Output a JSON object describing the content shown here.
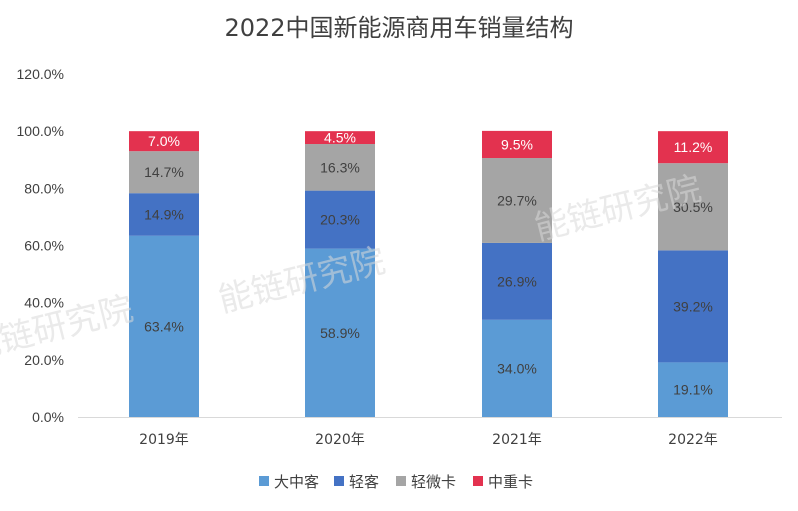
{
  "watermark": "能链研究院",
  "chart_data": {
    "type": "bar",
    "stacked": true,
    "title": "2022中国新能源商用车销量结构",
    "categories": [
      "2019年",
      "2020年",
      "2021年",
      "2022年"
    ],
    "ylim": [
      0,
      120
    ],
    "yticks": [
      "0.0%",
      "20.0%",
      "40.0%",
      "60.0%",
      "80.0%",
      "100.0%",
      "120.0%"
    ],
    "grid": false,
    "legend_position": "bottom",
    "series": [
      {
        "name": "大中客",
        "color": "#5b9bd5",
        "values": [
          63.4,
          58.9,
          34.0,
          19.1
        ],
        "labels": [
          "63.4%",
          "58.9%",
          "34.0%",
          "19.1%"
        ]
      },
      {
        "name": "轻客",
        "color": "#4472c4",
        "values": [
          14.9,
          20.3,
          26.9,
          39.2
        ],
        "labels": [
          "14.9%",
          "20.3%",
          "26.9%",
          "39.2%"
        ]
      },
      {
        "name": "轻微卡",
        "color": "#a5a5a5",
        "values": [
          14.7,
          16.3,
          29.7,
          30.5
        ],
        "labels": [
          "14.7%",
          "16.3%",
          "29.7%",
          "30.5%"
        ]
      },
      {
        "name": "中重卡",
        "color": "#e3324f",
        "values": [
          7.0,
          4.5,
          9.5,
          11.2
        ],
        "labels": [
          "7.0%",
          "4.5%",
          "9.5%",
          "11.2%"
        ]
      }
    ]
  }
}
